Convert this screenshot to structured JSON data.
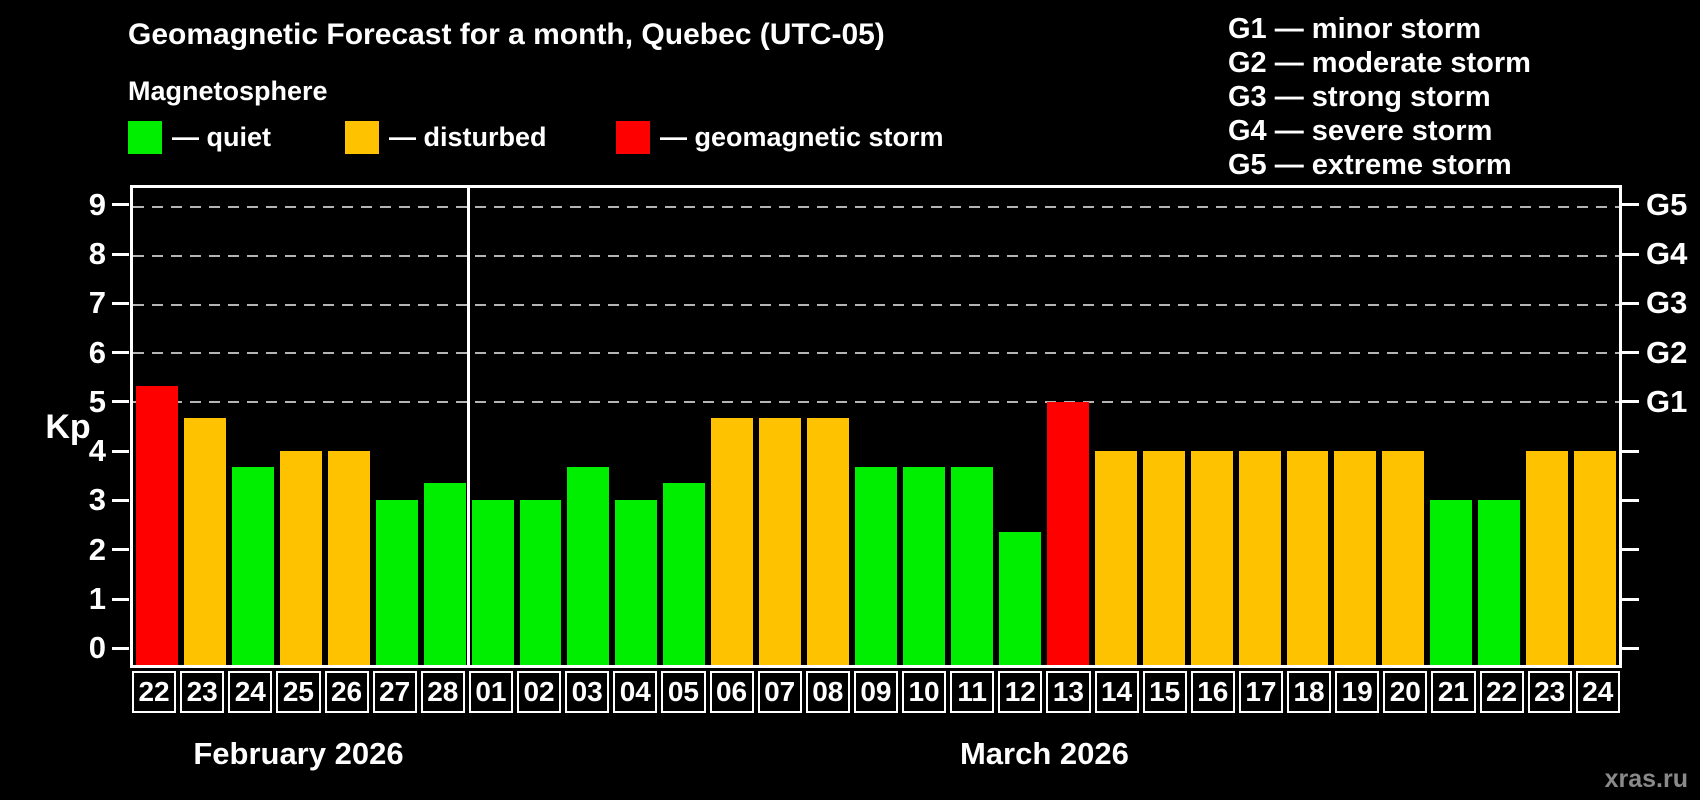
{
  "title": "Geomagnetic Forecast for a month, Quebec (UTC-05)",
  "subtitle": "Magnetosphere",
  "legend": {
    "items": [
      {
        "id": "quiet",
        "label": "— quiet",
        "color": "#00ee00"
      },
      {
        "id": "disturbed",
        "label": "— disturbed",
        "color": "#ffc200"
      },
      {
        "id": "storm",
        "label": "— geomagnetic storm",
        "color": "#ff0000"
      }
    ]
  },
  "g_scale": {
    "items": [
      "G1 — minor storm",
      "G2 — moderate storm",
      "G3 — strong storm",
      "G4 — severe storm",
      "G5 — extreme storm"
    ]
  },
  "watermark": "xras.ru",
  "chart_data": {
    "type": "bar",
    "title": "Geomagnetic Forecast for a month, Quebec (UTC-05)",
    "subtitle": "Magnetosphere",
    "ylabel": "Kp",
    "ylim": [
      -0.4,
      9.4
    ],
    "y_ticks": [
      0,
      1,
      2,
      3,
      4,
      5,
      6,
      7,
      8,
      9
    ],
    "gridlines_at": [
      5,
      6,
      7,
      8,
      9
    ],
    "grid_style": "horizontal dashed gray lines at Kp 5..9",
    "right_axis": [
      {
        "kp": 5,
        "label": "G1"
      },
      {
        "kp": 6,
        "label": "G2"
      },
      {
        "kp": 7,
        "label": "G3"
      },
      {
        "kp": 8,
        "label": "G4"
      },
      {
        "kp": 9,
        "label": "G5"
      }
    ],
    "months": [
      {
        "label": "February 2026",
        "days": 7
      },
      {
        "label": "March 2026",
        "days": 24
      }
    ],
    "categories": [
      "22",
      "23",
      "24",
      "25",
      "26",
      "27",
      "28",
      "01",
      "02",
      "03",
      "04",
      "05",
      "06",
      "07",
      "08",
      "09",
      "10",
      "11",
      "12",
      "13",
      "14",
      "15",
      "16",
      "17",
      "18",
      "19",
      "20",
      "21",
      "22",
      "23",
      "24"
    ],
    "series": [
      {
        "name": "Kp forecast",
        "values": [
          5.33,
          4.67,
          3.67,
          4.0,
          4.0,
          3.0,
          3.33,
          3.0,
          3.0,
          3.67,
          3.0,
          3.33,
          4.67,
          4.67,
          4.67,
          3.67,
          3.67,
          3.67,
          2.33,
          5.0,
          4.0,
          4.0,
          4.0,
          4.0,
          4.0,
          4.0,
          4.0,
          3.0,
          3.0,
          4.0,
          4.0
        ],
        "status": [
          "storm",
          "disturbed",
          "quiet",
          "disturbed",
          "disturbed",
          "quiet",
          "quiet",
          "quiet",
          "quiet",
          "quiet",
          "quiet",
          "quiet",
          "disturbed",
          "disturbed",
          "disturbed",
          "quiet",
          "quiet",
          "quiet",
          "quiet",
          "storm",
          "disturbed",
          "disturbed",
          "disturbed",
          "disturbed",
          "disturbed",
          "disturbed",
          "disturbed",
          "quiet",
          "quiet",
          "disturbed",
          "disturbed"
        ]
      }
    ]
  }
}
